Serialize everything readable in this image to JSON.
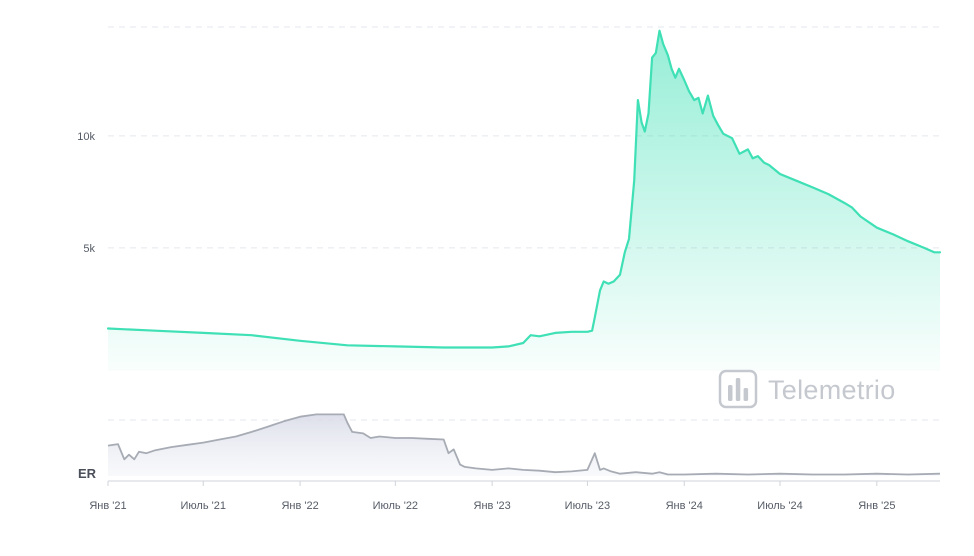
{
  "chart_data": {
    "type": "area",
    "watermark": "Telemetrio",
    "main": {
      "y_ticks": [
        {
          "value": 5000,
          "label": "5k"
        },
        {
          "value": 10000,
          "label": "10k"
        }
      ],
      "ylim": [
        -500,
        15000
      ],
      "series": [
        {
          "color": "#3fe0b5",
          "x": [
            "2021-01-01",
            "2021-04-01",
            "2021-07-01",
            "2021-10-01",
            "2022-01-01",
            "2022-04-01",
            "2022-07-01",
            "2022-10-01",
            "2023-01-01",
            "2023-02-01",
            "2023-03-01",
            "2023-03-15",
            "2023-04-01",
            "2023-05-01",
            "2023-06-01",
            "2023-07-01",
            "2023-07-10",
            "2023-07-15",
            "2023-07-25",
            "2023-08-01",
            "2023-08-10",
            "2023-08-20",
            "2023-09-01",
            "2023-09-10",
            "2023-09-18",
            "2023-09-28",
            "2023-10-05",
            "2023-10-12",
            "2023-10-18",
            "2023-10-25",
            "2023-11-01",
            "2023-11-08",
            "2023-11-15",
            "2023-11-22",
            "2023-12-01",
            "2023-12-08",
            "2023-12-15",
            "2023-12-22",
            "2024-01-01",
            "2024-01-10",
            "2024-01-20",
            "2024-01-28",
            "2024-02-05",
            "2024-02-15",
            "2024-02-25",
            "2024-03-05",
            "2024-03-15",
            "2024-04-01",
            "2024-04-15",
            "2024-05-01",
            "2024-05-10",
            "2024-05-20",
            "2024-06-01",
            "2024-06-10",
            "2024-07-01",
            "2024-08-01",
            "2024-09-01",
            "2024-10-01",
            "2024-11-01",
            "2024-11-15",
            "2024-12-01",
            "2025-01-01",
            "2025-02-01",
            "2025-03-01",
            "2025-04-01",
            "2025-04-20",
            "2025-05-01"
          ],
          "y": [
            1400,
            1300,
            1200,
            1100,
            850,
            650,
            600,
            550,
            550,
            600,
            750,
            1100,
            1050,
            1200,
            1250,
            1250,
            1300,
            1900,
            3100,
            3500,
            3400,
            3500,
            3800,
            4800,
            5400,
            8000,
            11600,
            10600,
            10200,
            11000,
            13500,
            13700,
            14700,
            14100,
            13600,
            13000,
            12600,
            13000,
            12500,
            12000,
            11600,
            11700,
            11000,
            11800,
            10900,
            10500,
            10100,
            9900,
            9200,
            9400,
            9000,
            9100,
            8800,
            8700,
            8300,
            8000,
            7700,
            7400,
            7000,
            6800,
            6400,
            5900,
            5600,
            5300,
            5000,
            4800,
            4800
          ]
        }
      ]
    },
    "er": {
      "label": "ER",
      "ylim": [
        0,
        1
      ],
      "series": [
        {
          "color": "#a7abb4",
          "x": [
            "2021-01-01",
            "2021-01-20",
            "2021-02-01",
            "2021-02-10",
            "2021-02-20",
            "2021-03-01",
            "2021-03-15",
            "2021-04-01",
            "2021-05-01",
            "2021-06-01",
            "2021-07-01",
            "2021-08-01",
            "2021-09-01",
            "2021-10-01",
            "2021-11-01",
            "2021-12-01",
            "2022-01-01",
            "2022-02-01",
            "2022-03-01",
            "2022-03-25",
            "2022-04-01",
            "2022-04-10",
            "2022-05-01",
            "2022-05-15",
            "2022-06-01",
            "2022-07-01",
            "2022-08-01",
            "2022-09-01",
            "2022-10-01",
            "2022-10-10",
            "2022-10-20",
            "2022-11-01",
            "2022-11-10",
            "2022-12-01",
            "2023-01-01",
            "2023-02-01",
            "2023-03-01",
            "2023-04-01",
            "2023-05-01",
            "2023-06-01",
            "2023-07-01",
            "2023-07-15",
            "2023-07-25",
            "2023-08-01",
            "2023-08-15",
            "2023-09-01",
            "2023-10-01",
            "2023-11-01",
            "2023-11-15",
            "2023-12-01",
            "2024-01-01",
            "2024-03-01",
            "2024-05-01",
            "2024-07-01",
            "2024-09-01",
            "2024-11-01",
            "2025-01-01",
            "2025-03-01",
            "2025-05-01"
          ],
          "y": [
            0.4,
            0.42,
            0.22,
            0.28,
            0.22,
            0.32,
            0.3,
            0.34,
            0.38,
            0.41,
            0.44,
            0.48,
            0.52,
            0.58,
            0.65,
            0.72,
            0.78,
            0.81,
            0.81,
            0.81,
            0.7,
            0.58,
            0.56,
            0.5,
            0.52,
            0.5,
            0.5,
            0.49,
            0.48,
            0.3,
            0.35,
            0.15,
            0.12,
            0.1,
            0.08,
            0.1,
            0.08,
            0.07,
            0.05,
            0.06,
            0.08,
            0.3,
            0.08,
            0.1,
            0.06,
            0.03,
            0.05,
            0.03,
            0.05,
            0.02,
            0.02,
            0.03,
            0.02,
            0.03,
            0.02,
            0.02,
            0.03,
            0.02,
            0.03
          ]
        }
      ]
    },
    "x_axis": {
      "start": "2021-01-01",
      "end": "2025-05-01",
      "ticks": [
        {
          "date": "2021-01-01",
          "label": "Янв '21"
        },
        {
          "date": "2021-07-01",
          "label": "Июль '21"
        },
        {
          "date": "2022-01-01",
          "label": "Янв '22"
        },
        {
          "date": "2022-07-01",
          "label": "Июль '22"
        },
        {
          "date": "2023-01-01",
          "label": "Янв '23"
        },
        {
          "date": "2023-07-01",
          "label": "Июль '23"
        },
        {
          "date": "2024-01-01",
          "label": "Янв '24"
        },
        {
          "date": "2024-07-01",
          "label": "Июль '24"
        },
        {
          "date": "2025-01-01",
          "label": "Янв '25"
        }
      ]
    }
  }
}
